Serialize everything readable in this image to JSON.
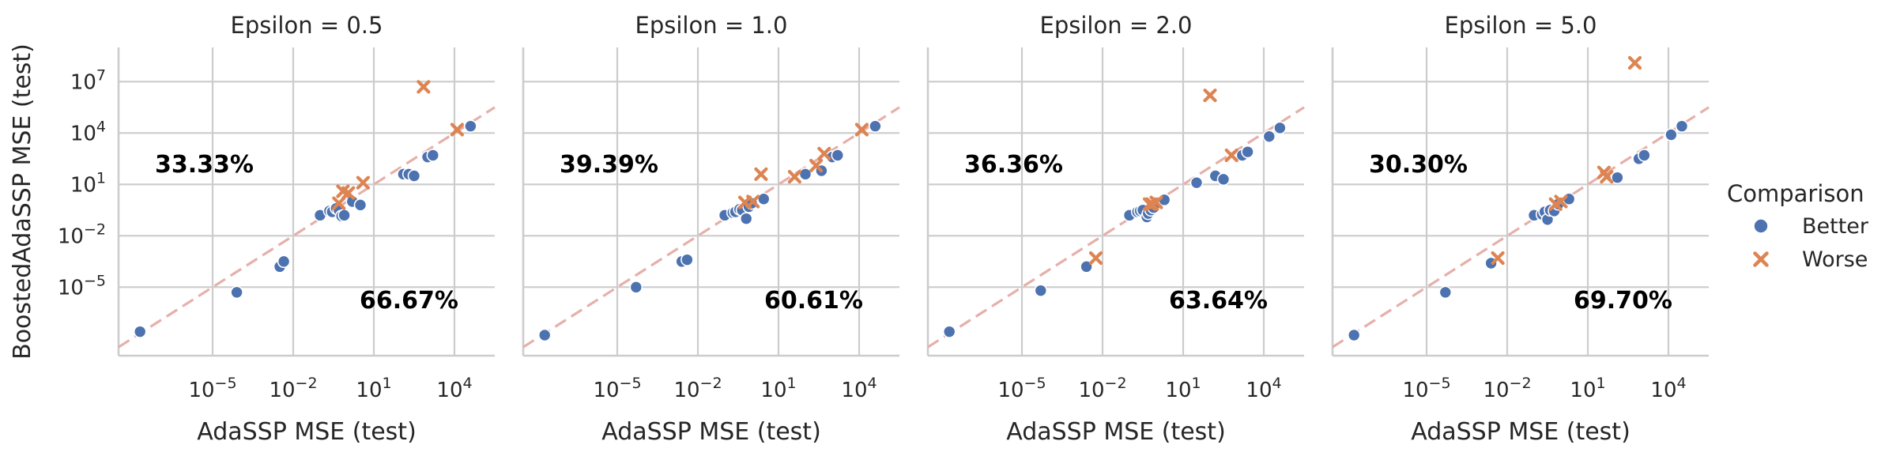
{
  "chart_data": {
    "type": "scatter",
    "x_scale": "log10",
    "y_scale": "log10",
    "xlim_log10": [
      -8.5,
      5.5
    ],
    "ylim_log10": [
      -9.0,
      9.0
    ],
    "xlabel": "AdaSSP MSE (test)",
    "ylabel": "BoostedAdaSSP MSE (test)",
    "x_tick_exponents": [
      -5,
      -2,
      1,
      4
    ],
    "y_tick_exponents": [
      -5,
      -2,
      1,
      4,
      7
    ],
    "x_tick_labels": [
      "10^-5",
      "10^-2",
      "10^1",
      "10^4"
    ],
    "y_tick_labels": [
      "10^-5",
      "10^-2",
      "10^1",
      "10^4",
      "10^7"
    ],
    "reference_line": "y = x",
    "legend": {
      "title": "Comparison",
      "entries": [
        {
          "label": "Better",
          "marker": "circle",
          "color": "#4c72b0"
        },
        {
          "label": "Worse",
          "marker": "x",
          "color": "#dd8452"
        }
      ]
    },
    "colors": {
      "better": "#4c72b0",
      "worse": "#dd8452",
      "reference": "#e6b0aa"
    },
    "panels": [
      {
        "title": "Epsilon = 0.5",
        "upper_percent": "33.33%",
        "lower_percent": "66.67%",
        "points_log10": [
          [
            -7.7,
            -7.6,
            "Better"
          ],
          [
            -4.1,
            -5.3,
            "Better"
          ],
          [
            -2.5,
            -3.8,
            "Better"
          ],
          [
            -2.35,
            -3.5,
            "Better"
          ],
          [
            -1.0,
            -0.8,
            "Better"
          ],
          [
            -0.65,
            -0.55,
            "Better"
          ],
          [
            -0.55,
            -0.6,
            "Better"
          ],
          [
            -0.4,
            -0.4,
            "Better"
          ],
          [
            -0.3,
            -0.5,
            "Better"
          ],
          [
            -0.2,
            -0.85,
            "Better"
          ],
          [
            -0.1,
            -0.8,
            "Better"
          ],
          [
            0.2,
            0.0,
            "Better"
          ],
          [
            0.5,
            -0.2,
            "Better"
          ],
          [
            2.1,
            1.6,
            "Better"
          ],
          [
            2.3,
            1.6,
            "Better"
          ],
          [
            2.5,
            1.5,
            "Better"
          ],
          [
            3.0,
            2.6,
            "Better"
          ],
          [
            3.2,
            2.7,
            "Better"
          ],
          [
            4.6,
            4.4,
            "Better"
          ],
          [
            -0.3,
            -0.1,
            "Worse"
          ],
          [
            -0.15,
            0.6,
            "Worse"
          ],
          [
            0.05,
            0.5,
            "Worse"
          ],
          [
            0.6,
            1.1,
            "Worse"
          ],
          [
            2.85,
            6.7,
            "Worse"
          ],
          [
            4.1,
            4.2,
            "Worse"
          ]
        ]
      },
      {
        "title": "Epsilon = 1.0",
        "upper_percent": "39.39%",
        "lower_percent": "60.61%",
        "points_log10": [
          [
            -7.7,
            -7.8,
            "Better"
          ],
          [
            -4.3,
            -5.0,
            "Better"
          ],
          [
            -2.6,
            -3.5,
            "Better"
          ],
          [
            -2.4,
            -3.4,
            "Better"
          ],
          [
            -1.0,
            -0.8,
            "Better"
          ],
          [
            -0.7,
            -0.65,
            "Better"
          ],
          [
            -0.6,
            -0.6,
            "Better"
          ],
          [
            -0.45,
            -0.45,
            "Better"
          ],
          [
            -0.35,
            -0.5,
            "Better"
          ],
          [
            -0.2,
            -1.0,
            "Better"
          ],
          [
            -0.1,
            -0.3,
            "Better"
          ],
          [
            0.0,
            -0.1,
            "Better"
          ],
          [
            0.45,
            0.15,
            "Better"
          ],
          [
            2.0,
            1.6,
            "Better"
          ],
          [
            2.6,
            1.8,
            "Better"
          ],
          [
            3.0,
            2.6,
            "Better"
          ],
          [
            3.2,
            2.7,
            "Better"
          ],
          [
            4.6,
            4.4,
            "Better"
          ],
          [
            -0.25,
            -0.05,
            "Worse"
          ],
          [
            0.05,
            0.0,
            "Worse"
          ],
          [
            0.35,
            1.6,
            "Worse"
          ],
          [
            1.6,
            1.45,
            "Worse"
          ],
          [
            2.4,
            2.1,
            "Worse"
          ],
          [
            2.7,
            2.8,
            "Worse"
          ],
          [
            4.1,
            4.2,
            "Worse"
          ]
        ]
      },
      {
        "title": "Epsilon = 2.0",
        "upper_percent": "36.36%",
        "lower_percent": "63.64%",
        "points_log10": [
          [
            -7.7,
            -7.6,
            "Better"
          ],
          [
            -4.3,
            -5.2,
            "Better"
          ],
          [
            -2.6,
            -3.8,
            "Better"
          ],
          [
            -1.0,
            -0.8,
            "Better"
          ],
          [
            -0.7,
            -0.6,
            "Better"
          ],
          [
            -0.6,
            -0.55,
            "Better"
          ],
          [
            -0.5,
            -0.5,
            "Better"
          ],
          [
            -0.35,
            -0.9,
            "Better"
          ],
          [
            -0.3,
            -0.7,
            "Better"
          ],
          [
            -0.2,
            -0.5,
            "Better"
          ],
          [
            -0.1,
            -0.35,
            "Better"
          ],
          [
            0.3,
            0.1,
            "Better"
          ],
          [
            1.5,
            1.1,
            "Better"
          ],
          [
            2.2,
            1.5,
            "Better"
          ],
          [
            2.5,
            1.3,
            "Better"
          ],
          [
            3.2,
            2.7,
            "Better"
          ],
          [
            3.4,
            2.9,
            "Better"
          ],
          [
            4.2,
            3.8,
            "Better"
          ],
          [
            4.6,
            4.3,
            "Better"
          ],
          [
            -2.25,
            -3.3,
            "Worse"
          ],
          [
            -0.25,
            -0.15,
            "Worse"
          ],
          [
            -0.15,
            -0.15,
            "Worse"
          ],
          [
            0.0,
            -0.05,
            "Worse"
          ],
          [
            2.0,
            6.2,
            "Worse"
          ],
          [
            2.8,
            2.7,
            "Worse"
          ]
        ]
      },
      {
        "title": "Epsilon = 5.0",
        "upper_percent": "30.30%",
        "lower_percent": "69.70%",
        "points_log10": [
          [
            -7.7,
            -7.8,
            "Better"
          ],
          [
            -4.3,
            -5.3,
            "Better"
          ],
          [
            -2.6,
            -3.6,
            "Better"
          ],
          [
            -1.0,
            -0.8,
            "Better"
          ],
          [
            -0.7,
            -0.75,
            "Better"
          ],
          [
            -0.6,
            -0.6,
            "Better"
          ],
          [
            -0.5,
            -1.05,
            "Better"
          ],
          [
            -0.4,
            -0.5,
            "Better"
          ],
          [
            -0.25,
            -0.55,
            "Better"
          ],
          [
            -0.1,
            -0.15,
            "Better"
          ],
          [
            0.3,
            0.15,
            "Better"
          ],
          [
            2.1,
            1.4,
            "Better"
          ],
          [
            2.9,
            2.5,
            "Better"
          ],
          [
            3.1,
            2.7,
            "Better"
          ],
          [
            4.1,
            3.9,
            "Better"
          ],
          [
            4.5,
            4.4,
            "Better"
          ],
          [
            -2.35,
            -3.3,
            "Worse"
          ],
          [
            -0.2,
            -0.15,
            "Worse"
          ],
          [
            0.0,
            0.0,
            "Worse"
          ],
          [
            1.6,
            1.7,
            "Worse"
          ],
          [
            1.7,
            1.45,
            "Worse"
          ],
          [
            2.75,
            8.1,
            "Worse"
          ]
        ]
      }
    ]
  }
}
